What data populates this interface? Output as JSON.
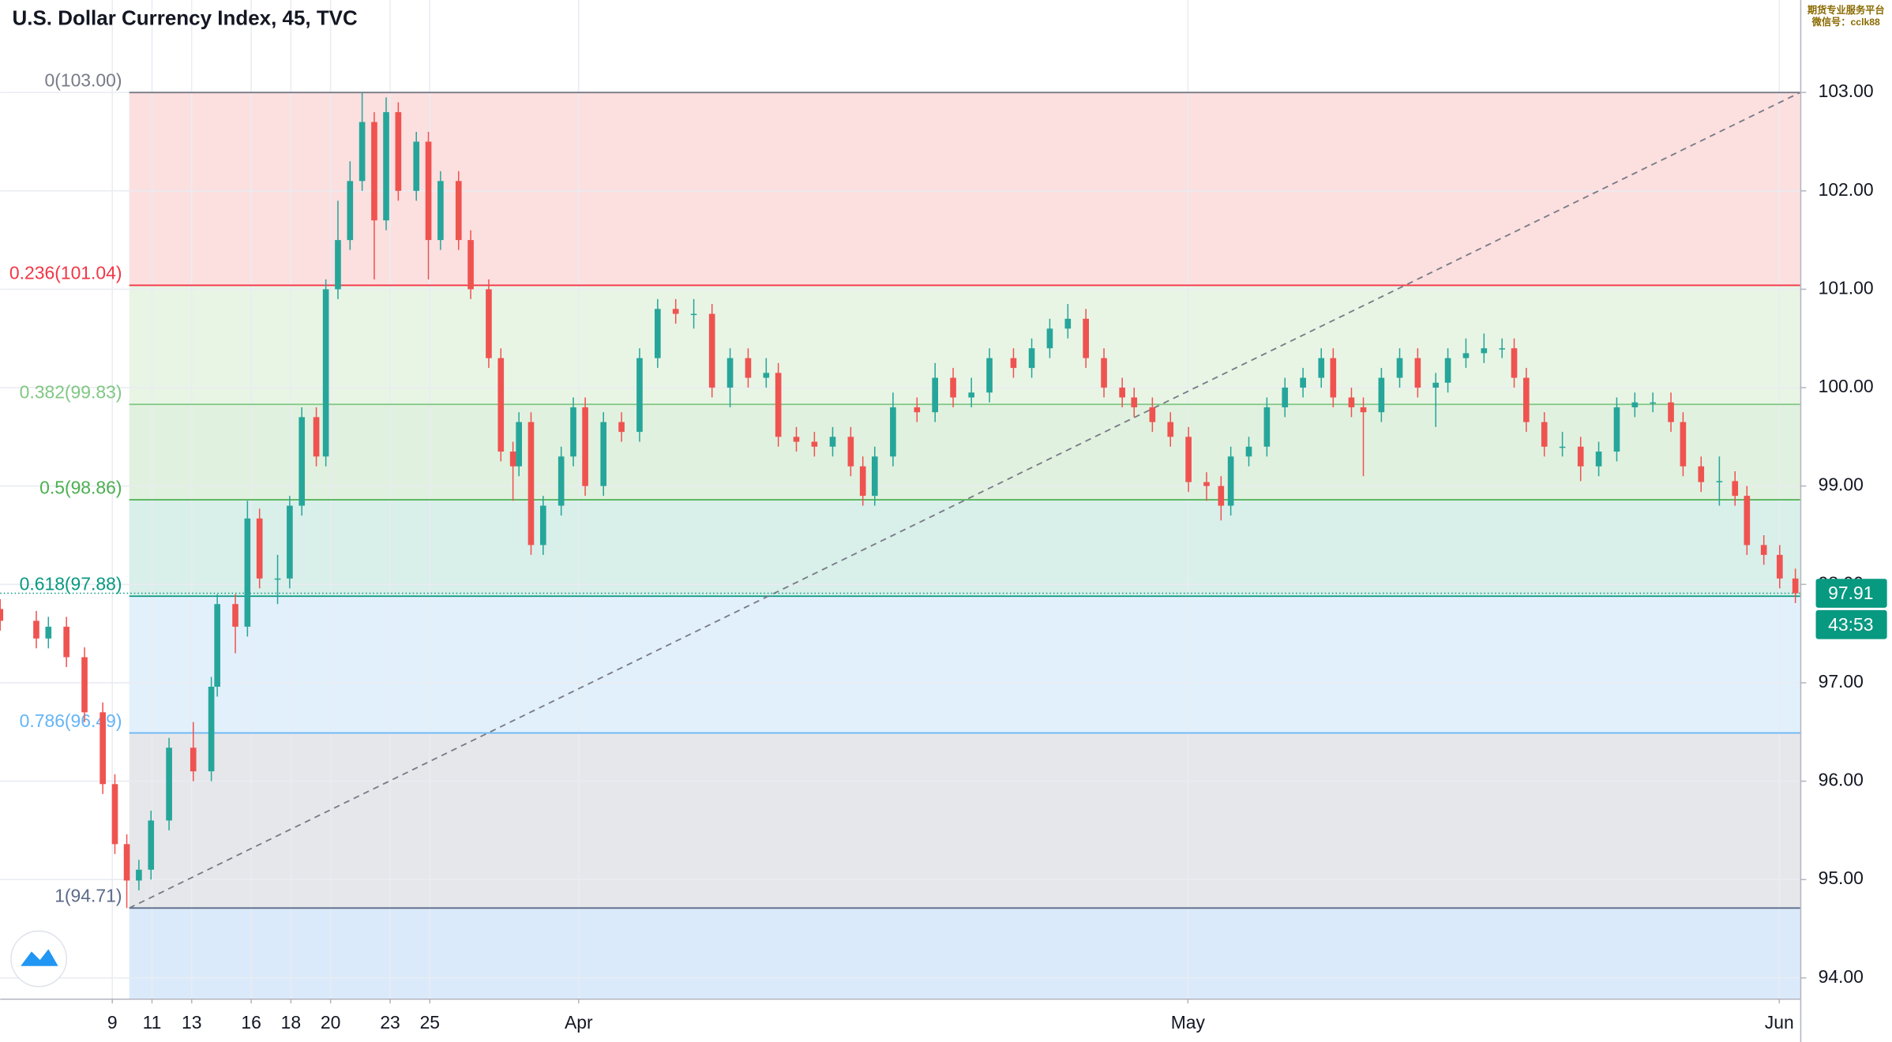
{
  "chart_data": {
    "type": "candlestick",
    "title": "U.S. Dollar Currency Index, 45, TVC",
    "watermark": [
      "期货专业服务平台",
      "微信号：cclk88"
    ],
    "xlim": [
      3.35,
      94.05
    ],
    "ylim": [
      93.79,
      103.94
    ],
    "xticks": [
      9,
      16,
      23,
      {
        "value": 32.5,
        "label": "Apr"
      },
      13,
      20,
      {
        "value": 63.2,
        "label": "May"
      },
      11,
      18,
      25,
      {
        "value": 93.0,
        "label": "Jun"
      }
    ],
    "yticks": [
      {
        "value": 94,
        "label": "94.00"
      },
      {
        "value": 95,
        "label": "95.00"
      },
      {
        "value": 96,
        "label": "96.00"
      },
      {
        "value": 97,
        "label": "97.00"
      },
      {
        "value": 98,
        "label": "98.00"
      },
      {
        "value": 99,
        "label": "99.00"
      },
      {
        "value": 100,
        "label": "100.00"
      },
      {
        "value": 101,
        "label": "101.00"
      },
      {
        "value": 102,
        "label": "102.00"
      },
      {
        "value": 103,
        "label": "103.00"
      }
    ],
    "grid": true,
    "up_color": "#26a69a",
    "down_color": "#ef5350",
    "last_price": 97.91,
    "last_price_color": "#089981",
    "countdown": "43:53",
    "fib_levels": [
      {
        "label": "0(103.00)",
        "value": 103.0,
        "color": "#787b86",
        "fill": "#fcd9d9"
      },
      {
        "label": "0.236(101.04)",
        "value": 101.04,
        "color": "#f23645",
        "fill": "#e4f3e1"
      },
      {
        "label": "0.382(99.83)",
        "value": 99.83,
        "color": "#81c784",
        "fill": "#dcefd9"
      },
      {
        "label": "0.5(98.86)",
        "value": 98.86,
        "color": "#4caf50",
        "fill": "#d2ece6"
      },
      {
        "label": "0.618(97.88)",
        "value": 97.88,
        "color": "#089981",
        "fill": "#ddedfb"
      },
      {
        "label": "0.786(96.49)",
        "value": 96.49,
        "color": "#64b5f6",
        "fill": "#e2e3e6"
      },
      {
        "label": "1(94.71)",
        "value": 94.71,
        "color": "#5d6b8a",
        "fill": "#d5e6fa"
      }
    ],
    "x": [
      3.35,
      5.17,
      5.78,
      6.69,
      7.6,
      8.52,
      9.13,
      9.73,
      10.34,
      10.95,
      11.86,
      13.08,
      13.99,
      14.29,
      15.2,
      15.81,
      16.42,
      17.33,
      17.94,
      18.55,
      19.28,
      19.76,
      20.37,
      20.98,
      21.59,
      22.2,
      22.8,
      23.41,
      24.32,
      24.93,
      25.54,
      26.45,
      27.06,
      27.97,
      28.58,
      29.19,
      29.49,
      30.1,
      30.71,
      31.62,
      32.23,
      32.83,
      33.75,
      34.66,
      35.57,
      36.48,
      37.39,
      38.3,
      39.22,
      40.13,
      41.04,
      41.95,
      42.56,
      43.47,
      44.38,
      45.3,
      46.21,
      46.82,
      47.42,
      48.34,
      49.55,
      50.46,
      51.37,
      52.29,
      53.2,
      54.41,
      55.33,
      56.24,
      57.15,
      58.06,
      58.97,
      59.89,
      60.49,
      61.41,
      62.32,
      63.23,
      64.14,
      64.87,
      65.36,
      66.27,
      67.18,
      68.09,
      69.0,
      69.92,
      70.52,
      71.44,
      72.04,
      72.95,
      73.87,
      74.78,
      75.69,
      76.3,
      77.21,
      78.12,
      79.03,
      79.64,
      80.25,
      81.16,
      82.07,
      82.99,
      83.9,
      84.81,
      85.72,
      86.63,
      87.54,
      88.15,
      89.06,
      89.98,
      90.77,
      91.37,
      92.22,
      93.02,
      93.81
    ],
    "open": [
      97.75,
      97.63,
      97.45,
      97.57,
      97.26,
      96.7,
      95.97,
      95.36,
      94.99,
      95.1,
      95.6,
      96.34,
      96.1,
      96.96,
      97.8,
      97.57,
      98.67,
      98.06,
      98.06,
      98.8,
      99.7,
      99.3,
      101.0,
      101.5,
      102.1,
      102.7,
      101.7,
      102.8,
      102.0,
      102.5,
      101.5,
      102.1,
      101.5,
      101.0,
      100.3,
      99.35,
      99.2,
      99.65,
      98.4,
      98.8,
      99.3,
      99.8,
      99.0,
      99.65,
      99.55,
      100.3,
      100.8,
      100.75,
      100.75,
      100.0,
      100.3,
      100.1,
      100.15,
      99.5,
      99.45,
      99.4,
      99.5,
      99.2,
      98.9,
      99.3,
      99.8,
      99.75,
      100.1,
      99.9,
      99.95,
      100.3,
      100.2,
      100.4,
      100.6,
      100.7,
      100.3,
      100.0,
      99.9,
      99.8,
      99.65,
      99.5,
      99.04,
      99.0,
      98.8,
      99.3,
      99.4,
      99.8,
      100.0,
      100.1,
      100.3,
      99.9,
      99.8,
      99.75,
      100.1,
      100.3,
      100.0,
      100.05,
      100.3,
      100.35,
      100.4,
      100.4,
      100.1,
      99.65,
      99.4,
      99.4,
      99.2,
      99.35,
      99.8,
      99.85,
      99.85,
      99.65,
      99.2,
      99.04,
      99.05,
      98.9,
      98.4,
      98.3,
      98.06
    ],
    "high": [
      97.85,
      97.73,
      97.67,
      97.67,
      97.36,
      96.8,
      96.07,
      95.46,
      95.2,
      95.7,
      96.44,
      96.6,
      97.06,
      97.9,
      97.9,
      98.85,
      98.77,
      98.3,
      98.9,
      99.8,
      99.8,
      101.1,
      101.9,
      102.3,
      103.0,
      102.8,
      102.95,
      102.9,
      102.6,
      102.6,
      102.2,
      102.2,
      101.6,
      101.1,
      100.4,
      99.45,
      99.75,
      99.75,
      98.9,
      99.4,
      99.9,
      99.9,
      99.75,
      99.75,
      100.4,
      100.9,
      100.9,
      100.9,
      100.85,
      100.4,
      100.4,
      100.3,
      100.25,
      99.6,
      99.55,
      99.6,
      99.6,
      99.3,
      99.4,
      99.95,
      99.9,
      100.25,
      100.2,
      100.1,
      100.4,
      100.4,
      100.5,
      100.7,
      100.85,
      100.8,
      100.4,
      100.1,
      100.0,
      99.9,
      99.75,
      99.6,
      99.14,
      99.1,
      99.4,
      99.5,
      99.9,
      100.1,
      100.2,
      100.4,
      100.4,
      100.0,
      99.9,
      100.2,
      100.4,
      100.4,
      100.15,
      100.4,
      100.5,
      100.55,
      100.5,
      100.5,
      100.2,
      99.75,
      99.55,
      99.5,
      99.45,
      99.9,
      99.95,
      99.95,
      99.95,
      99.75,
      99.3,
      99.3,
      99.15,
      99.0,
      98.5,
      98.4,
      98.16
    ],
    "low": [
      97.53,
      97.35,
      97.35,
      97.16,
      96.6,
      95.87,
      95.26,
      94.71,
      94.89,
      95.0,
      95.5,
      96.0,
      96.0,
      96.86,
      97.3,
      97.47,
      97.96,
      97.8,
      97.96,
      98.7,
      99.2,
      99.2,
      100.9,
      101.4,
      102.0,
      101.1,
      101.6,
      101.9,
      101.9,
      101.1,
      101.4,
      101.4,
      100.9,
      100.2,
      99.25,
      98.85,
      99.1,
      98.3,
      98.3,
      98.7,
      99.2,
      98.9,
      98.9,
      99.45,
      99.45,
      100.2,
      100.65,
      100.6,
      99.9,
      99.8,
      100.0,
      100.0,
      99.4,
      99.35,
      99.3,
      99.3,
      99.1,
      98.8,
      98.8,
      99.2,
      99.65,
      99.65,
      99.8,
      99.8,
      99.85,
      100.1,
      100.1,
      100.3,
      100.5,
      100.2,
      99.9,
      99.8,
      99.7,
      99.55,
      99.4,
      98.94,
      98.85,
      98.65,
      98.7,
      99.2,
      99.3,
      99.7,
      99.9,
      100.0,
      99.8,
      99.7,
      99.1,
      99.65,
      100.0,
      99.9,
      99.6,
      99.95,
      100.2,
      100.25,
      100.3,
      100.0,
      99.55,
      99.3,
      99.3,
      99.05,
      99.1,
      99.25,
      99.7,
      99.75,
      99.55,
      99.1,
      98.94,
      98.8,
      98.8,
      98.3,
      98.2,
      97.96,
      97.81
    ],
    "close": [
      97.63,
      97.45,
      97.57,
      97.26,
      96.7,
      95.97,
      95.36,
      94.99,
      95.1,
      95.6,
      96.34,
      96.1,
      96.96,
      97.8,
      97.57,
      98.67,
      98.06,
      98.06,
      98.8,
      99.7,
      99.3,
      101.0,
      101.5,
      102.1,
      102.7,
      101.7,
      102.8,
      102.0,
      102.5,
      101.5,
      102.1,
      101.5,
      101.0,
      100.3,
      99.35,
      99.2,
      99.65,
      98.4,
      98.8,
      99.3,
      99.8,
      99.0,
      99.65,
      99.55,
      100.3,
      100.8,
      100.75,
      100.75,
      100.0,
      100.3,
      100.1,
      100.15,
      99.5,
      99.45,
      99.4,
      99.5,
      99.2,
      98.9,
      99.3,
      99.8,
      99.75,
      100.1,
      99.9,
      99.95,
      100.3,
      100.2,
      100.4,
      100.6,
      100.7,
      100.3,
      100.0,
      99.9,
      99.8,
      99.65,
      99.5,
      99.04,
      99.0,
      98.8,
      99.3,
      99.4,
      99.8,
      100.0,
      100.1,
      100.3,
      99.9,
      99.8,
      99.75,
      100.1,
      100.3,
      100.0,
      100.05,
      100.3,
      100.35,
      100.4,
      100.4,
      100.1,
      99.65,
      99.4,
      99.4,
      99.2,
      99.35,
      99.8,
      99.85,
      99.85,
      99.65,
      99.2,
      99.04,
      99.05,
      98.9,
      98.4,
      98.3,
      98.06,
      97.91
    ]
  }
}
